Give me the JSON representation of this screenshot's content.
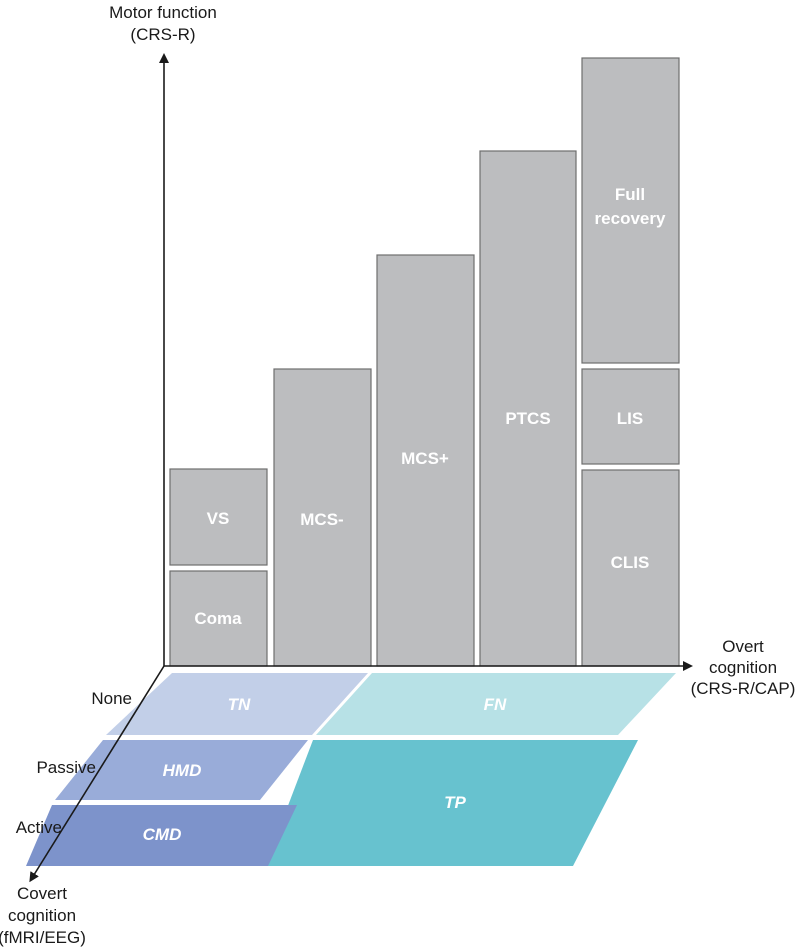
{
  "axes": {
    "y_label_line1": "Motor function",
    "y_label_line2": "(CRS-R)",
    "x_label_line1": "Overt",
    "x_label_line2": "cognition",
    "x_label_line3": "(CRS-R/CAP)",
    "z_label_line1": "Covert",
    "z_label_line2": "cognition",
    "z_label_line3": "(fMRI/EEG)"
  },
  "covert_levels": [
    "None",
    "Passive",
    "Active"
  ],
  "states": {
    "coma": "Coma",
    "vs": "VS",
    "mcs_minus": "MCS-",
    "mcs_plus": "MCS+",
    "ptcs": "PTCS",
    "clis": "CLIS",
    "lis": "LIS",
    "full_recovery_line1": "Full",
    "full_recovery_line2": "recovery"
  },
  "floor": {
    "tn": "TN",
    "fn": "FN",
    "hmd": "HMD",
    "tp": "TP",
    "cmd": "CMD"
  },
  "colors": {
    "bar_fill": "#bcbdbf",
    "bar_stroke": "#6e6e6e",
    "tn": "#c2cfe8",
    "fn": "#b7e1e6",
    "hmd": "#99acd9",
    "tp": "#67c2cf",
    "cmd": "#7d93cb",
    "axis": "#1a1a1a"
  }
}
